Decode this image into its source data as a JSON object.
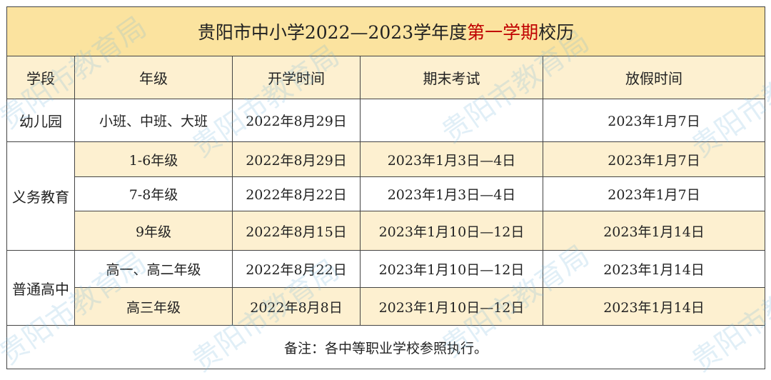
{
  "title": {
    "prefix": "贵阳市中小学2022—2023学年度",
    "highlight": "第一学期",
    "suffix": "校历",
    "highlight_color": "#c00000"
  },
  "headers": [
    "学段",
    "年级",
    "开学时间",
    "期末考试",
    "放假时间"
  ],
  "stages": [
    "幼儿园",
    "义务教育",
    "普通高中"
  ],
  "rows": [
    {
      "grade": "小班、中班、大班",
      "start": "2022年8月29日",
      "exam": "",
      "holiday": "2023年1月7日"
    },
    {
      "grade": "1-6年级",
      "start": "2022年8月29日",
      "exam": "2023年1月3日—4日",
      "holiday": "2023年1月7日"
    },
    {
      "grade": "7-8年级",
      "start": "2022年8月22日",
      "exam": "2023年1月3日—4日",
      "holiday": "2023年1月7日"
    },
    {
      "grade": "9年级",
      "start": "2022年8月15日",
      "exam": "2023年1月10日—12日",
      "holiday": "2023年1月14日"
    },
    {
      "grade": "高一、高二年级",
      "start": "2022年8月22日",
      "exam": "2023年1月10日—12日",
      "holiday": "2023年1月14日"
    },
    {
      "grade": "高三年级",
      "start": "2022年8月8日",
      "exam": "2023年1月10日—12日",
      "holiday": "2023年1月14日"
    }
  ],
  "note": "备注：各中等职业学校参照执行。",
  "watermark": "贵阳市教育局",
  "colors": {
    "title_bg": "#fbe39f",
    "shade": "#fdf0d0"
  }
}
